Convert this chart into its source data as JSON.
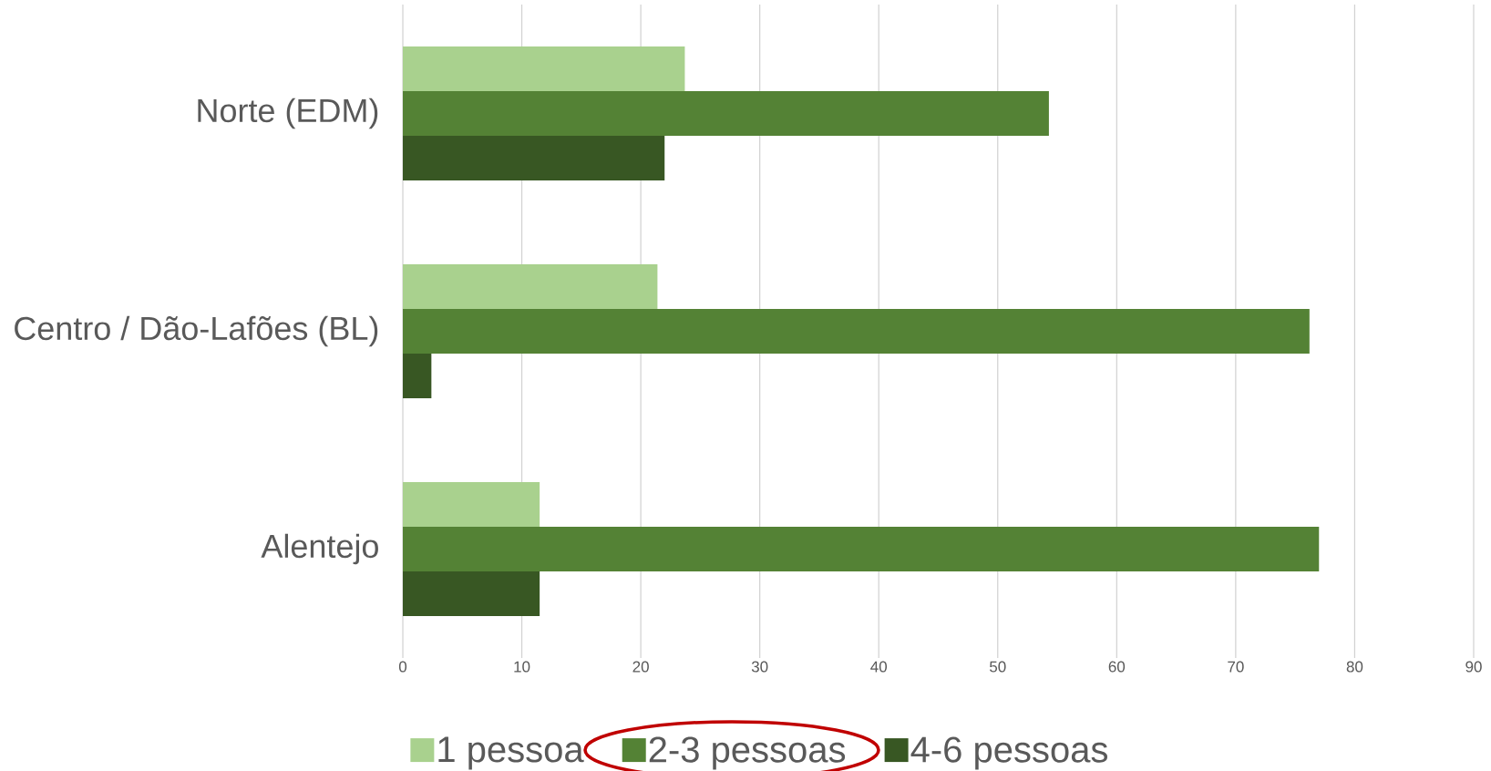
{
  "chart_data": {
    "type": "bar",
    "orientation": "horizontal",
    "categories": [
      "Norte (EDM)",
      "Centro / Dão-Lafões (BL)",
      "Alentejo"
    ],
    "series": [
      {
        "name": "1 pessoa",
        "color": "#a9d18e",
        "values": [
          23.7,
          21.4,
          11.5
        ]
      },
      {
        "name": "2-3 pessoas",
        "color": "#548235",
        "values": [
          54.3,
          76.2,
          77.0
        ]
      },
      {
        "name": "4-6 pessoas",
        "color": "#385723",
        "values": [
          22.0,
          2.4,
          11.5
        ]
      }
    ],
    "xlim": [
      0,
      90
    ],
    "xticks": [
      0,
      10,
      20,
      30,
      40,
      50,
      60,
      70,
      80,
      90
    ],
    "grid": "x",
    "legend": "bottom"
  }
}
